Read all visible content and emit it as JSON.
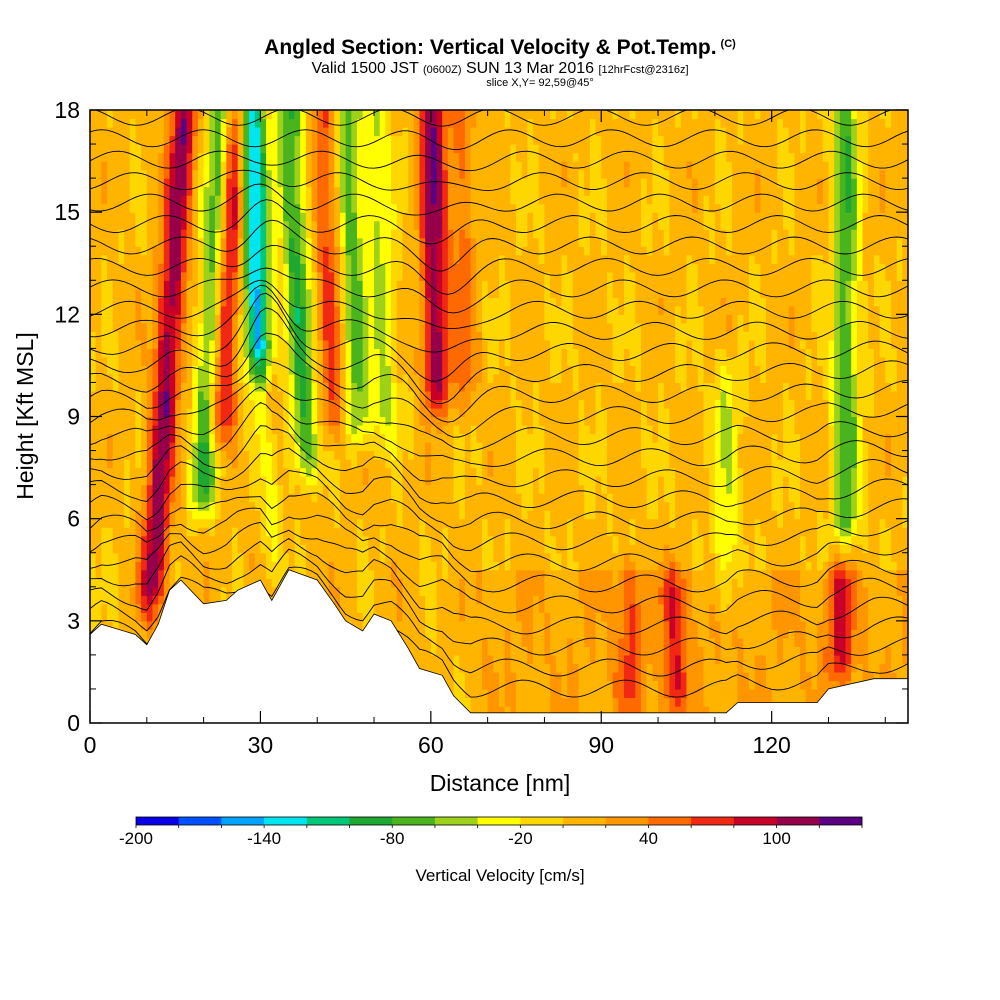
{
  "titles": {
    "main": "Angled Section: Vertical Velocity & Pot.Temp.",
    "copyright": "(C)",
    "valid_prefix": "Valid 1500 JST",
    "valid_utc": "(0600Z)",
    "valid_date": "SUN 13 Mar 2016",
    "forecast": "[12hrFcst@2316z]",
    "slice": "slice X,Y= 92,59@45°"
  },
  "chart_data": {
    "type": "heatmap",
    "xlabel": "Distance [nm]",
    "ylabel": "Height [Kft MSL]",
    "xlim": [
      0,
      144
    ],
    "ylim": [
      0,
      18
    ],
    "x_ticks": [
      0,
      30,
      60,
      90,
      120
    ],
    "y_ticks": [
      0,
      3,
      6,
      9,
      12,
      15,
      18
    ],
    "colorbar": {
      "label": "Vertical Velocity [cm/s]",
      "tick_values": [
        -200,
        -140,
        -80,
        -20,
        40,
        100
      ],
      "min": -200,
      "max": 130,
      "bin_width": 20,
      "colors": [
        "#0a00e6",
        "#0050ff",
        "#00a4ff",
        "#00e6f0",
        "#00c878",
        "#1ea832",
        "#4ab41e",
        "#9ed21a",
        "#ffff00",
        "#ffd700",
        "#ffb400",
        "#ff9600",
        "#ff6a00",
        "#f02814",
        "#c80028",
        "#96004b",
        "#5a0082"
      ]
    },
    "terrain_height_profile": [
      [
        0,
        2.6
      ],
      [
        2,
        2.9
      ],
      [
        8,
        2.6
      ],
      [
        10,
        2.3
      ],
      [
        12,
        2.9
      ],
      [
        14,
        3.9
      ],
      [
        16,
        4.2
      ],
      [
        20,
        3.5
      ],
      [
        24,
        3.6
      ],
      [
        26,
        3.9
      ],
      [
        30,
        4.2
      ],
      [
        32,
        3.6
      ],
      [
        35,
        4.5
      ],
      [
        40,
        4.2
      ],
      [
        43,
        3.5
      ],
      [
        45,
        3.0
      ],
      [
        48,
        2.7
      ],
      [
        50,
        3.2
      ],
      [
        53,
        3.0
      ],
      [
        56,
        2.2
      ],
      [
        58,
        1.6
      ],
      [
        62,
        1.4
      ],
      [
        64,
        0.8
      ],
      [
        67,
        0.3
      ],
      [
        100,
        0.3
      ],
      [
        112,
        0.3
      ],
      [
        114,
        0.6
      ],
      [
        128,
        0.6
      ],
      [
        130,
        1.0
      ],
      [
        138,
        1.3
      ],
      [
        144,
        1.3
      ]
    ],
    "vertical_velocity_features": [
      {
        "x": 11,
        "z_range": [
          4,
          18
        ],
        "w": 110,
        "lean": 4
      },
      {
        "x": 20,
        "z_range": [
          7,
          18
        ],
        "w": -90,
        "lean": 3
      },
      {
        "x": 23,
        "z_range": [
          9,
          18
        ],
        "w": 100,
        "lean": 3
      },
      {
        "x": 31,
        "z_range": [
          5,
          18
        ],
        "w": -150,
        "lean": -2
      },
      {
        "x": 30.5,
        "z_range": [
          5,
          9.5
        ],
        "w": 130,
        "lean": 0
      },
      {
        "x": 38,
        "z_range": [
          8,
          18
        ],
        "w": -90,
        "lean": -3
      },
      {
        "x": 43,
        "z_range": [
          9,
          18
        ],
        "w": 60,
        "lean": -2
      },
      {
        "x": 47,
        "z_range": [
          9,
          18
        ],
        "w": -75,
        "lean": -2
      },
      {
        "x": 52,
        "z_range": [
          9,
          18
        ],
        "w": -50,
        "lean": -2
      },
      {
        "x": 61,
        "z_range": [
          10,
          18
        ],
        "w": 110,
        "lean": -1
      },
      {
        "x": 66,
        "z_range": [
          10,
          18
        ],
        "w": 40,
        "lean": -1
      },
      {
        "x": 95,
        "z_range": [
          1,
          4
        ],
        "w": 50,
        "lean": 0
      },
      {
        "x": 103,
        "z_range": [
          1,
          4
        ],
        "w": 60,
        "lean": 0
      },
      {
        "x": 112,
        "z_range": [
          4,
          10
        ],
        "w": -40,
        "lean": 0
      },
      {
        "x": 132,
        "z_range": [
          2,
          4
        ],
        "w": 70,
        "lean": 0
      },
      {
        "x": 133,
        "z_range": [
          6,
          18
        ],
        "w": -80,
        "lean": 0
      }
    ],
    "pot_temp_contour_levels_K": [
      290,
      292,
      294,
      296,
      298,
      300,
      302,
      304,
      306,
      308,
      310,
      312,
      314,
      316,
      318,
      320,
      322,
      324,
      326,
      328,
      330,
      332,
      334,
      336,
      338,
      340,
      342,
      344
    ]
  }
}
